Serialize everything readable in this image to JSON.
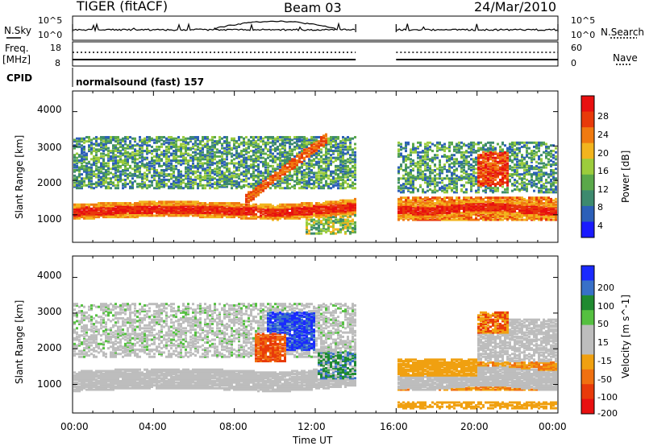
{
  "header": {
    "station": "TIGER (fitACF)",
    "beam": "Beam 03",
    "date": "24/Mar/2010"
  },
  "status_panels": {
    "nsky_label": "N.Sky",
    "nsky_ticks": [
      "10^5",
      "10^0"
    ],
    "nsearch_label": "N.Search",
    "nsearch_ticks": [
      "10^5",
      "10^0"
    ],
    "freq_label_line1": "Freq.",
    "freq_label_line2": "[MHz]",
    "freq_ticks": [
      "18",
      "8"
    ],
    "nave_label": "Nave",
    "nave_ticks": [
      "60",
      "0"
    ],
    "cpid_label": "CPID",
    "cpid_value": "normalsound (fast) 157"
  },
  "chart_data": [
    {
      "type": "heatmap",
      "name": "Power",
      "ylabel": "Slant Range [km]",
      "yticks": [
        1000,
        2000,
        3000,
        4000
      ],
      "ylim": [
        200,
        4600
      ],
      "xlim_hours": [
        0,
        24
      ],
      "data_gap_hours": [
        14,
        16
      ],
      "colorbar_label": "Power [dB]",
      "colorbar_ticks": [
        "4",
        "8",
        "12",
        "16",
        "20",
        "24",
        "28"
      ],
      "colorbar_colors": [
        "#1a1aff",
        "#2c5fb8",
        "#3d8a6e",
        "#5aa84a",
        "#9ccc3c",
        "#f2b41e",
        "#f07a10",
        "#e83a0a",
        "#e81010"
      ],
      "bands": [
        {
          "desc": "main echo band",
          "start_h": 0.0,
          "end_h": 14.0,
          "range_start_km": 900,
          "range_end_km": 1400,
          "level_db": 27
        },
        {
          "desc": "upper scatter",
          "start_h": 0.0,
          "end_h": 14.0,
          "range_start_km": 1800,
          "range_end_km": 3200,
          "level_db": 14
        },
        {
          "desc": "evening echoes",
          "start_h": 16.0,
          "end_h": 24.0,
          "range_start_km": 800,
          "range_end_km": 1600,
          "level_db": 24
        }
      ]
    },
    {
      "type": "heatmap",
      "name": "Velocity",
      "ylabel": "Slant Range [km]",
      "yticks": [
        1000,
        2000,
        3000,
        4000
      ],
      "ylim": [
        200,
        4600
      ],
      "xlim_hours": [
        0,
        24
      ],
      "data_gap_hours": [
        14,
        16
      ],
      "colorbar_label": "Velocity [m s^-1]",
      "colorbar_ticks": [
        "200",
        "100",
        "50",
        "15",
        "-15",
        "-50",
        "-100",
        "-200"
      ],
      "colorbar_colors": [
        "#1a2aff",
        "#3870c8",
        "#1f8a30",
        "#55c040",
        "#bdbdbd",
        "#bdbdbd",
        "#f0a010",
        "#f07010",
        "#e83a0a",
        "#e81010"
      ],
      "x_ticks": [
        "00:00",
        "04:00",
        "08:00",
        "12:00",
        "16:00",
        "20:00",
        "00:00"
      ],
      "xlabel": "Time UT"
    }
  ]
}
